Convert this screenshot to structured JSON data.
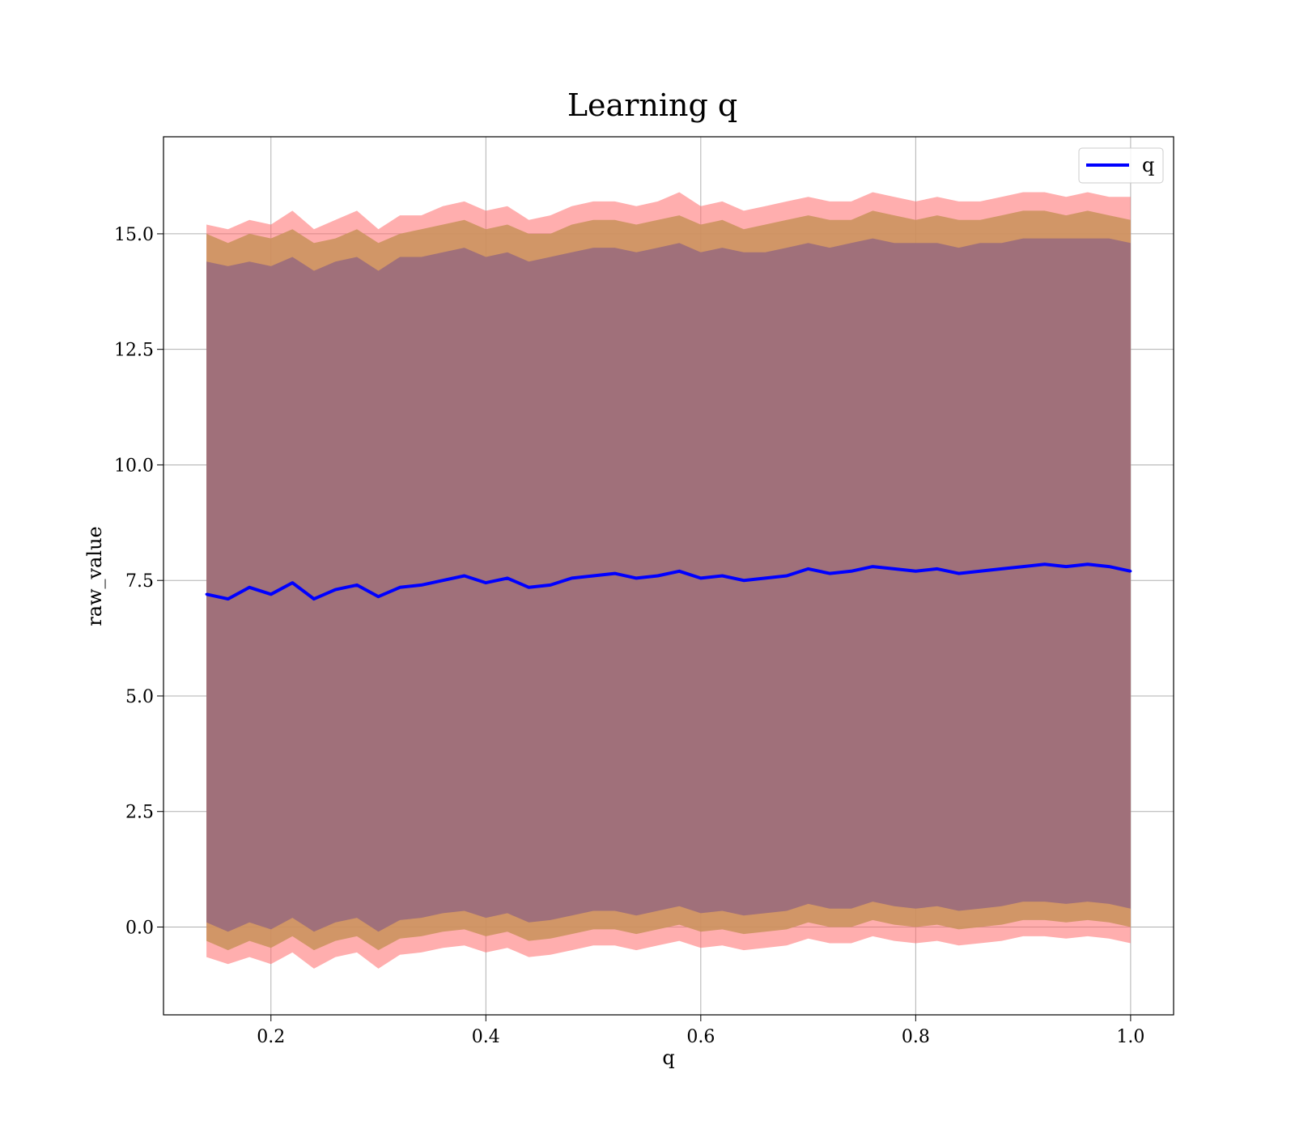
{
  "chart_data": {
    "type": "line",
    "title": "Learning q",
    "xlabel": "q",
    "ylabel": "raw_value",
    "xlim": [
      0.1,
      1.04
    ],
    "ylim": [
      -1.9,
      17.1
    ],
    "xticks": [
      0.2,
      0.4,
      0.6,
      0.8,
      1.0
    ],
    "xtick_labels": [
      "0.2",
      "0.4",
      "0.6",
      "0.8",
      "1.0"
    ],
    "yticks": [
      0.0,
      2.5,
      5.0,
      7.5,
      10.0,
      12.5,
      15.0
    ],
    "ytick_labels": [
      "0.0",
      "2.5",
      "5.0",
      "7.5",
      "10.0",
      "12.5",
      "15.0"
    ],
    "grid": true,
    "legend_position": "top-right",
    "legend": [
      "q"
    ],
    "colors": {
      "line": "#0000ff",
      "band_outer": "#ff6b6b",
      "band_middle": "#c9925a",
      "band_inner": "#a0707a",
      "grid": "#b0b0b0"
    },
    "series": [
      {
        "name": "q",
        "x": [
          0.14,
          0.16,
          0.18,
          0.2,
          0.22,
          0.24,
          0.26,
          0.28,
          0.3,
          0.32,
          0.34,
          0.36,
          0.38,
          0.4,
          0.42,
          0.44,
          0.46,
          0.48,
          0.5,
          0.52,
          0.54,
          0.56,
          0.58,
          0.6,
          0.62,
          0.64,
          0.66,
          0.68,
          0.7,
          0.72,
          0.74,
          0.76,
          0.78,
          0.8,
          0.82,
          0.84,
          0.86,
          0.88,
          0.9,
          0.92,
          0.94,
          0.96,
          0.98,
          1.0
        ],
        "y": [
          7.2,
          7.1,
          7.35,
          7.2,
          7.45,
          7.1,
          7.3,
          7.4,
          7.15,
          7.35,
          7.4,
          7.5,
          7.6,
          7.45,
          7.55,
          7.35,
          7.4,
          7.55,
          7.6,
          7.65,
          7.55,
          7.6,
          7.7,
          7.55,
          7.6,
          7.5,
          7.55,
          7.6,
          7.75,
          7.65,
          7.7,
          7.8,
          7.75,
          7.7,
          7.75,
          7.65,
          7.7,
          7.75,
          7.8,
          7.85,
          7.8,
          7.85,
          7.8,
          7.7
        ],
        "band_inner_upper": [
          14.4,
          14.3,
          14.4,
          14.3,
          14.5,
          14.2,
          14.4,
          14.5,
          14.2,
          14.5,
          14.5,
          14.6,
          14.7,
          14.5,
          14.6,
          14.4,
          14.5,
          14.6,
          14.7,
          14.7,
          14.6,
          14.7,
          14.8,
          14.6,
          14.7,
          14.6,
          14.6,
          14.7,
          14.8,
          14.7,
          14.8,
          14.9,
          14.8,
          14.8,
          14.8,
          14.7,
          14.8,
          14.8,
          14.9,
          14.9,
          14.9,
          14.9,
          14.9,
          14.8
        ],
        "band_middle_upper": [
          15.0,
          14.8,
          15.0,
          14.9,
          15.1,
          14.8,
          14.9,
          15.1,
          14.8,
          15.0,
          15.1,
          15.2,
          15.3,
          15.1,
          15.2,
          15.0,
          15.0,
          15.2,
          15.3,
          15.3,
          15.2,
          15.3,
          15.4,
          15.2,
          15.3,
          15.1,
          15.2,
          15.3,
          15.4,
          15.3,
          15.3,
          15.5,
          15.4,
          15.3,
          15.4,
          15.3,
          15.3,
          15.4,
          15.5,
          15.5,
          15.4,
          15.5,
          15.4,
          15.3
        ],
        "band_outer_upper": [
          15.2,
          15.1,
          15.3,
          15.2,
          15.5,
          15.1,
          15.3,
          15.5,
          15.1,
          15.4,
          15.4,
          15.6,
          15.7,
          15.5,
          15.6,
          15.3,
          15.4,
          15.6,
          15.7,
          15.7,
          15.6,
          15.7,
          15.9,
          15.6,
          15.7,
          15.5,
          15.6,
          15.7,
          15.8,
          15.7,
          15.7,
          15.9,
          15.8,
          15.7,
          15.8,
          15.7,
          15.7,
          15.8,
          15.9,
          15.9,
          15.8,
          15.9,
          15.8,
          15.8
        ],
        "band_inner_lower": [
          0.1,
          -0.1,
          0.1,
          -0.05,
          0.2,
          -0.1,
          0.1,
          0.2,
          -0.1,
          0.15,
          0.2,
          0.3,
          0.35,
          0.2,
          0.3,
          0.1,
          0.15,
          0.25,
          0.35,
          0.35,
          0.25,
          0.35,
          0.45,
          0.3,
          0.35,
          0.25,
          0.3,
          0.35,
          0.5,
          0.4,
          0.4,
          0.55,
          0.45,
          0.4,
          0.45,
          0.35,
          0.4,
          0.45,
          0.55,
          0.55,
          0.5,
          0.55,
          0.5,
          0.4
        ],
        "band_middle_lower": [
          -0.3,
          -0.5,
          -0.3,
          -0.45,
          -0.2,
          -0.5,
          -0.3,
          -0.2,
          -0.5,
          -0.25,
          -0.2,
          -0.1,
          -0.05,
          -0.2,
          -0.1,
          -0.3,
          -0.25,
          -0.15,
          -0.05,
          -0.05,
          -0.15,
          -0.05,
          0.05,
          -0.1,
          -0.05,
          -0.15,
          -0.1,
          -0.05,
          0.1,
          0.0,
          0.0,
          0.15,
          0.05,
          0.0,
          0.05,
          -0.05,
          0.0,
          0.05,
          0.15,
          0.15,
          0.1,
          0.15,
          0.1,
          0.0
        ],
        "band_outer_lower": [
          -0.65,
          -0.8,
          -0.65,
          -0.8,
          -0.55,
          -0.9,
          -0.65,
          -0.55,
          -0.9,
          -0.6,
          -0.55,
          -0.45,
          -0.4,
          -0.55,
          -0.45,
          -0.65,
          -0.6,
          -0.5,
          -0.4,
          -0.4,
          -0.5,
          -0.4,
          -0.3,
          -0.45,
          -0.4,
          -0.5,
          -0.45,
          -0.4,
          -0.25,
          -0.35,
          -0.35,
          -0.2,
          -0.3,
          -0.35,
          -0.3,
          -0.4,
          -0.35,
          -0.3,
          -0.2,
          -0.2,
          -0.25,
          -0.2,
          -0.25,
          -0.35
        ]
      }
    ]
  }
}
